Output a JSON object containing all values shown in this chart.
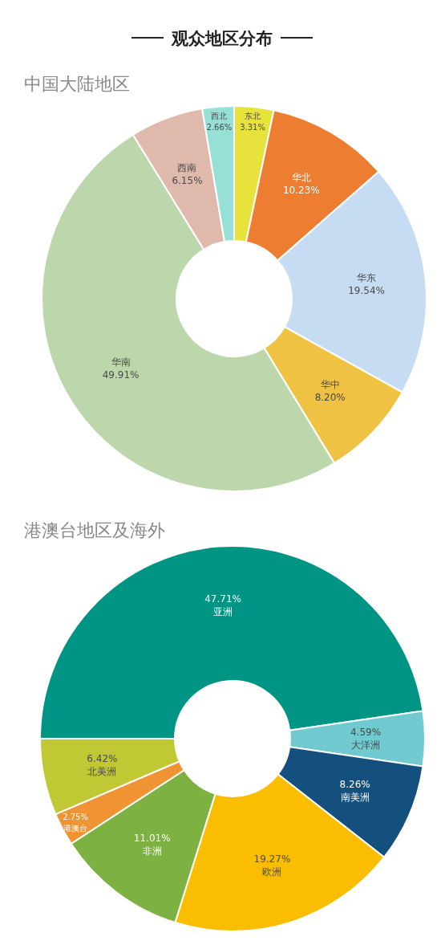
{
  "chart_data": [
    {
      "type": "donut",
      "title": "观众地区分布",
      "subtitle": "中国大陆地区",
      "value_labels": [
        "3.31%",
        "10.23%",
        "19.54%",
        "8.20%",
        "49.91%",
        "6.15%",
        "2.66%"
      ],
      "categories": [
        "东北",
        "华北",
        "华东",
        "华中",
        "华南",
        "西南",
        "西北"
      ],
      "values": [
        3.31,
        10.23,
        19.54,
        8.2,
        49.91,
        6.15,
        2.66
      ],
      "colors": [
        "#e8e23c",
        "#ed7d31",
        "#c5dcf2",
        "#efc244",
        "#bcd7ab",
        "#deb9ac",
        "#96e0d6"
      ]
    },
    {
      "type": "donut",
      "title": "港澳台地区及海外",
      "value_labels": [
        "47.71%",
        "4.59%",
        "8.26%",
        "19.27%",
        "11.01%",
        "2.75%",
        "6.42%"
      ],
      "categories": [
        "亚洲",
        "大洋洲",
        "南美洲",
        "欧洲",
        "非洲",
        "港澳台",
        "北美洲"
      ],
      "values": [
        47.71,
        4.59,
        8.26,
        19.27,
        11.01,
        2.75,
        6.42
      ],
      "colors": [
        "#009485",
        "#70cad0",
        "#13507e",
        "#fbbd00",
        "#7db142",
        "#f09433",
        "#c0c833"
      ]
    }
  ]
}
